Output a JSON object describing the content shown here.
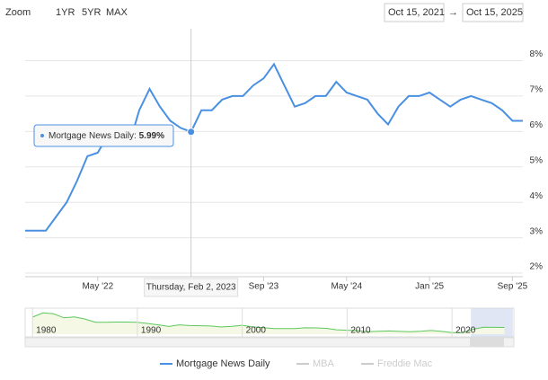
{
  "zoom": {
    "label": "Zoom",
    "buttons": [
      "1YR",
      "5YR",
      "MAX"
    ]
  },
  "range": {
    "from": "Oct 15, 2021",
    "separator": "→",
    "to": "Oct 15, 2025"
  },
  "chart_data": {
    "type": "line",
    "x": [
      "2021-10",
      "2021-11",
      "2021-12",
      "2022-01",
      "2022-02",
      "2022-03",
      "2022-04",
      "2022-05",
      "2022-06",
      "2022-07",
      "2022-08",
      "2022-09",
      "2022-10",
      "2022-11",
      "2022-12",
      "2023-01",
      "2023-02",
      "2023-03",
      "2023-04",
      "2023-05",
      "2023-06",
      "2023-07",
      "2023-08",
      "2023-09",
      "2023-10",
      "2023-11",
      "2023-12",
      "2024-01",
      "2024-02",
      "2024-03",
      "2024-04",
      "2024-05",
      "2024-06",
      "2024-07",
      "2024-08",
      "2024-09",
      "2024-10",
      "2024-11",
      "2024-12",
      "2025-01",
      "2025-02",
      "2025-03",
      "2025-04",
      "2025-05",
      "2025-06",
      "2025-07",
      "2025-08",
      "2025-09",
      "2025-10"
    ],
    "series": [
      {
        "name": "Mortgage News Daily",
        "color": "#4a90e2",
        "values": [
          3.2,
          3.2,
          3.2,
          3.6,
          4.0,
          4.6,
          5.3,
          5.4,
          5.9,
          5.6,
          5.6,
          6.6,
          7.2,
          6.7,
          6.3,
          6.1,
          5.99,
          6.6,
          6.6,
          6.9,
          7.0,
          7.0,
          7.3,
          7.5,
          7.9,
          7.3,
          6.7,
          6.8,
          7.0,
          7.0,
          7.4,
          7.1,
          7.0,
          6.9,
          6.5,
          6.2,
          6.7,
          7.0,
          7.0,
          7.1,
          6.9,
          6.7,
          6.9,
          7.0,
          6.9,
          6.8,
          6.6,
          6.3,
          6.3
        ]
      }
    ],
    "hidden_series": [
      {
        "name": "MBA",
        "color": "#cccccc"
      },
      {
        "name": "Freddie Mac",
        "color": "#cccccc"
      }
    ],
    "xlim": [
      "2021-10",
      "2025-10"
    ],
    "xticks": [
      {
        "value": "2022-05",
        "label": "May '22"
      },
      {
        "value": "2023-09",
        "label": "Sep '23"
      },
      {
        "value": "2024-05",
        "label": "May '24"
      },
      {
        "value": "2025-01",
        "label": "Jan '25"
      },
      {
        "value": "2025-09",
        "label": "Sep '25"
      }
    ],
    "ylim": [
      1.9,
      8.9
    ],
    "yticks": [
      {
        "value": 2,
        "label": "2%"
      },
      {
        "value": 3,
        "label": "3%"
      },
      {
        "value": 4,
        "label": "4%"
      },
      {
        "value": 5,
        "label": "5%"
      },
      {
        "value": 6,
        "label": "6%"
      },
      {
        "value": 7,
        "label": "7%"
      },
      {
        "value": 8,
        "label": "8%"
      }
    ],
    "grid": true,
    "tooltip": {
      "x": "2023-02",
      "date_label": "Thursday, Feb 2, 2023",
      "value": 5.99,
      "value_label": "5.99%"
    },
    "navigator": {
      "color": "#5cc85c",
      "x": [
        1980,
        1981,
        1982,
        1983,
        1984,
        1985,
        1986,
        1987,
        1988,
        1989,
        1990,
        1991,
        1992,
        1993,
        1994,
        1995,
        1996,
        1997,
        1998,
        1999,
        2000,
        2001,
        2002,
        2003,
        2004,
        2005,
        2006,
        2007,
        2008,
        2009,
        2010,
        2011,
        2012,
        2013,
        2014,
        2015,
        2016,
        2017,
        2018,
        2019,
        2020,
        2021,
        2022,
        2023,
        2024,
        2025
      ],
      "values": [
        13.7,
        16.6,
        16.0,
        13.2,
        13.9,
        12.4,
        10.2,
        10.2,
        10.3,
        10.3,
        10.1,
        9.3,
        8.4,
        7.3,
        8.4,
        7.9,
        7.8,
        7.6,
        6.9,
        7.4,
        8.1,
        7.0,
        6.5,
        5.8,
        5.8,
        5.9,
        6.4,
        6.3,
        6.0,
        5.0,
        4.7,
        4.5,
        3.7,
        4.0,
        4.2,
        3.9,
        3.7,
        4.0,
        4.5,
        3.9,
        3.1,
        3.0,
        5.3,
        6.8,
        6.7,
        6.6
      ],
      "xlim": [
        1979.3,
        2025.9
      ],
      "ylim": [
        2,
        18
      ],
      "xticks": [
        1980,
        1990,
        2000,
        2010,
        2020
      ]
    }
  }
}
